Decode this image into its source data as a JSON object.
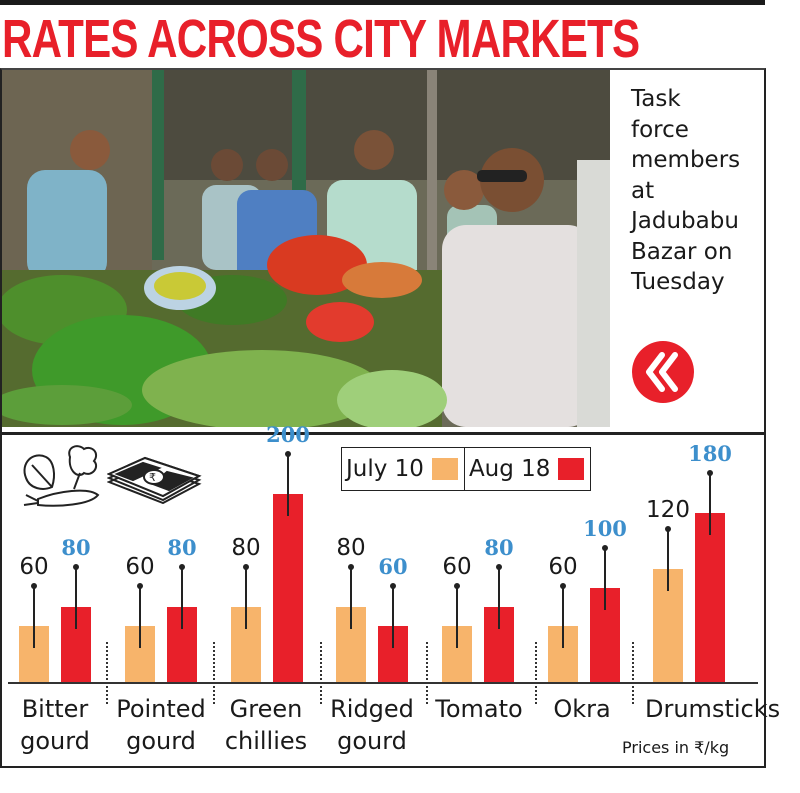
{
  "headline": "RATES ACROSS CITY MARKETS",
  "photo": {
    "description": "Vegetable stall with task force members inspecting produce"
  },
  "caption": {
    "lines": [
      "Task",
      "force",
      "members",
      "at",
      "Jadubabu",
      "Bazar on",
      "Tuesday"
    ],
    "logo_icon": "double-chevron-left-icon"
  },
  "legend": {
    "items": [
      {
        "label": "July 10",
        "color": "#f7b46b"
      },
      {
        "label": "Aug 18",
        "color": "#e8202a"
      }
    ]
  },
  "icons": {
    "vegetables": "vegetables-icon",
    "money": "rupee-notes-icon"
  },
  "note": "Prices in ₹/kg",
  "chart_data": {
    "type": "bar",
    "title": "RATES ACROSS CITY MARKETS",
    "xlabel": "",
    "ylabel": "Prices in ₹/kg",
    "categories": [
      "Bitter gourd",
      "Pointed gourd",
      "Green chillies",
      "Ridged gourd",
      "Tomato",
      "Okra",
      "Drumsticks"
    ],
    "category_lines": [
      [
        "Bitter",
        "gourd"
      ],
      [
        "Pointed",
        "gourd"
      ],
      [
        "Green",
        "chillies"
      ],
      [
        "Ridged",
        "gourd"
      ],
      [
        "Tomato",
        ""
      ],
      [
        "Okra",
        ""
      ],
      [
        "Drumsticks",
        ""
      ]
    ],
    "series": [
      {
        "name": "July 10",
        "color": "#f7b46b",
        "values": [
          60,
          60,
          80,
          80,
          60,
          60,
          120
        ]
      },
      {
        "name": "Aug 18",
        "color": "#e8202a",
        "values": [
          80,
          80,
          200,
          60,
          80,
          100,
          180
        ]
      }
    ],
    "ylim": [
      0,
      200
    ],
    "grid": false,
    "legend_position": "top"
  }
}
